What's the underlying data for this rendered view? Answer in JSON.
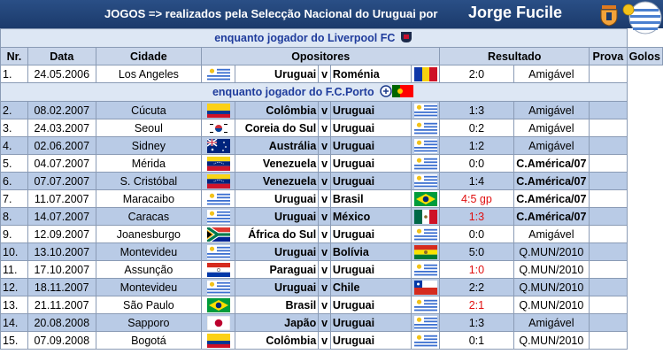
{
  "title": {
    "prefix": "JOGOS => realizados pela Selecção Nacional do Uruguai por",
    "player": "Jorge Fucile"
  },
  "headers": {
    "nr": "Nr.",
    "data": "Data",
    "cidade": "Cidade",
    "opositores": "Opositores",
    "resultado": "Resultado",
    "prova": "Prova",
    "golos": "Golos"
  },
  "sections": {
    "liverpool": "enquanto jogador do Liverpool FC",
    "porto": "enquanto jogador do F.C.Porto"
  },
  "versus": "v",
  "matches": [
    {
      "nr": "1.",
      "date": "24.05.2006",
      "city": "Los Angeles",
      "home": "Uruguai",
      "home_flag": "uruguay",
      "away": "Roménia",
      "away_flag": "romania",
      "result": "2:0",
      "result_color": "#000000",
      "competition": "Amigável",
      "competition_bold": false,
      "goals": ""
    },
    {
      "nr": "2.",
      "date": "08.02.2007",
      "city": "Cúcuta",
      "home": "Colômbia",
      "home_flag": "colombia",
      "away": "Uruguai",
      "away_flag": "uruguay",
      "result": "1:3",
      "result_color": "#000000",
      "competition": "Amigável",
      "competition_bold": false,
      "goals": ""
    },
    {
      "nr": "3.",
      "date": "24.03.2007",
      "city": "Seoul",
      "home": "Coreia do Sul",
      "home_flag": "south-korea",
      "away": "Uruguai",
      "away_flag": "uruguay",
      "result": "0:2",
      "result_color": "#000000",
      "competition": "Amigável",
      "competition_bold": false,
      "goals": ""
    },
    {
      "nr": "4.",
      "date": "02.06.2007",
      "city": "Sidney",
      "home": "Austrália",
      "home_flag": "australia",
      "away": "Uruguai",
      "away_flag": "uruguay",
      "result": "1:2",
      "result_color": "#000000",
      "competition": "Amigável",
      "competition_bold": false,
      "goals": ""
    },
    {
      "nr": "5.",
      "date": "04.07.2007",
      "city": "Mérida",
      "home": "Venezuela",
      "home_flag": "venezuela",
      "away": "Uruguai",
      "away_flag": "uruguay",
      "result": "0:0",
      "result_color": "#000000",
      "competition": "C.América/07",
      "competition_bold": true,
      "goals": ""
    },
    {
      "nr": "6.",
      "date": "07.07.2007",
      "city": "S. Cristóbal",
      "home": "Venezuela",
      "home_flag": "venezuela",
      "away": "Uruguai",
      "away_flag": "uruguay",
      "result": "1:4",
      "result_color": "#000000",
      "competition": "C.América/07",
      "competition_bold": true,
      "goals": ""
    },
    {
      "nr": "7.",
      "date": "11.07.2007",
      "city": "Maracaibo",
      "home": "Uruguai",
      "home_flag": "uruguay",
      "away": "Brasil",
      "away_flag": "brazil",
      "result": "4:5 gp",
      "result_color": "#e01010",
      "competition": "C.América/07",
      "competition_bold": true,
      "goals": ""
    },
    {
      "nr": "8.",
      "date": "14.07.2007",
      "city": "Caracas",
      "home": "Uruguai",
      "home_flag": "uruguay",
      "away": "México",
      "away_flag": "mexico",
      "result": "1:3",
      "result_color": "#e01010",
      "competition": "C.América/07",
      "competition_bold": true,
      "goals": ""
    },
    {
      "nr": "9.",
      "date": "12.09.2007",
      "city": "Joanesburgo",
      "home": "África do Sul",
      "home_flag": "south-africa",
      "away": "Uruguai",
      "away_flag": "uruguay",
      "result": "0:0",
      "result_color": "#000000",
      "competition": "Amigável",
      "competition_bold": false,
      "goals": ""
    },
    {
      "nr": "10.",
      "date": "13.10.2007",
      "city": "Montevideu",
      "home": "Uruguai",
      "home_flag": "uruguay",
      "away": "Bolívia",
      "away_flag": "bolivia",
      "result": "5:0",
      "result_color": "#000000",
      "competition": "Q.MUN/2010",
      "competition_bold": false,
      "goals": ""
    },
    {
      "nr": "11.",
      "date": "17.10.2007",
      "city": "Assunção",
      "home": "Paraguai",
      "home_flag": "paraguay",
      "away": "Uruguai",
      "away_flag": "uruguay",
      "result": "1:0",
      "result_color": "#e01010",
      "competition": "Q.MUN/2010",
      "competition_bold": false,
      "goals": ""
    },
    {
      "nr": "12.",
      "date": "18.11.2007",
      "city": "Montevideu",
      "home": "Uruguai",
      "home_flag": "uruguay",
      "away": "Chile",
      "away_flag": "chile",
      "result": "2:2",
      "result_color": "#000000",
      "competition": "Q.MUN/2010",
      "competition_bold": false,
      "goals": ""
    },
    {
      "nr": "13.",
      "date": "21.11.2007",
      "city": "São Paulo",
      "home": "Brasil",
      "home_flag": "brazil",
      "away": "Uruguai",
      "away_flag": "uruguay",
      "result": "2:1",
      "result_color": "#e01010",
      "competition": "Q.MUN/2010",
      "competition_bold": false,
      "goals": ""
    },
    {
      "nr": "14.",
      "date": "20.08.2008",
      "city": "Sapporo",
      "home": "Japão",
      "home_flag": "japan",
      "away": "Uruguai",
      "away_flag": "uruguay",
      "result": "1:3",
      "result_color": "#000000",
      "competition": "Amigável",
      "competition_bold": false,
      "goals": ""
    },
    {
      "nr": "15.",
      "date": "07.09.2008",
      "city": "Bogotá",
      "home": "Colômbia",
      "home_flag": "colombia",
      "away": "Uruguai",
      "away_flag": "uruguay",
      "result": "0:1",
      "result_color": "#000000",
      "competition": "Q.MUN/2010",
      "competition_bold": false,
      "goals": ""
    }
  ],
  "colors": {
    "title_bg": "#1b3a6b",
    "section_text": "#1f3c9c",
    "row_alt": "#b9cbe6",
    "defeat_red": "#e01010"
  },
  "icons": {
    "title_crest": "club-crest-icon",
    "title_emblem": "uruguay-emblem-icon",
    "liverpool_section": "liverpool-crest-icon",
    "porto_section": "porto-crest-icon"
  }
}
